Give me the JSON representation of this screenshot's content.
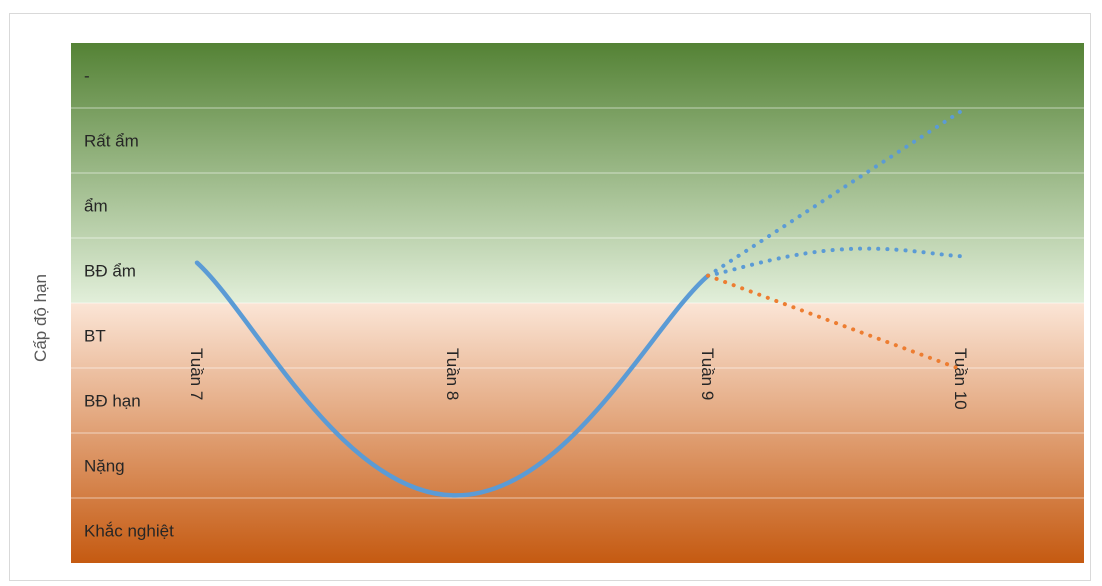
{
  "chart_data": {
    "type": "line",
    "title": "",
    "ylabel": "Cấp độ hạn",
    "xlabel": "",
    "levels": [
      "-",
      "Rất ẩm",
      "ẩm",
      "BĐ ẩm",
      "BT",
      "BĐ hạn",
      "Nặng",
      "Khắc nghiệt"
    ],
    "categories": [
      "Tuần 7",
      "Tuần 8",
      "Tuần 9",
      "Tuần 10"
    ],
    "ylim": [
      0,
      8
    ],
    "grid": true,
    "band_colors": {
      "wet_top": "#548235",
      "wet_light": "#e2efda",
      "dry_light": "#fbe5d6",
      "dry_bottom": "#c55a11"
    },
    "series": [
      {
        "style": "solid",
        "color": "#5b9bd5",
        "points": [
          {
            "x": "Tuần 7",
            "y": 4.62
          },
          {
            "x": "Tuần 8",
            "y": 1.04
          },
          {
            "x": "Tuần 9",
            "y": 4.42
          }
        ]
      },
      {
        "style": "dotted",
        "color": "#5b9bd5",
        "points": [
          {
            "x": "Tuần 9",
            "y": 4.42
          },
          {
            "x": "Tuần 10",
            "y": 6.95
          }
        ]
      },
      {
        "style": "dotted",
        "color": "#5b9bd5",
        "points": [
          {
            "x": "Tuần 9",
            "y": 4.42
          },
          {
            "x": "Tuần 9.5",
            "y": 4.82
          },
          {
            "x": "Tuần 10",
            "y": 4.72
          }
        ]
      },
      {
        "style": "dotted",
        "color": "#ed7d31",
        "points": [
          {
            "x": "Tuần 9",
            "y": 4.42
          },
          {
            "x": "Tuần 10",
            "y": 2.98
          }
        ]
      }
    ]
  }
}
